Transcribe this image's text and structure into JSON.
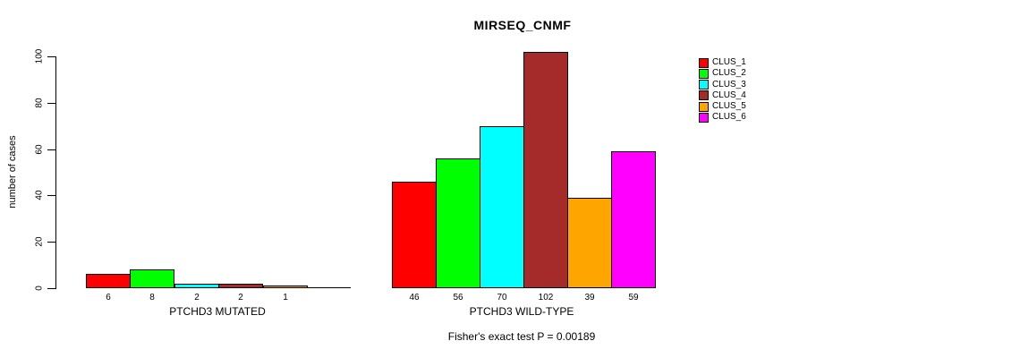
{
  "title": "MIRSEQ_CNMF",
  "y_axis": {
    "label": "number of cases",
    "ticks": [
      0,
      20,
      40,
      60,
      80,
      100
    ]
  },
  "legend": {
    "items": [
      {
        "label": "CLUS_1",
        "color": "#FF0000"
      },
      {
        "label": "CLUS_2",
        "color": "#00FF00"
      },
      {
        "label": "CLUS_3",
        "color": "#00FFFF"
      },
      {
        "label": "CLUS_4",
        "color": "#A52A2A"
      },
      {
        "label": "CLUS_5",
        "color": "#FFA500"
      },
      {
        "label": "CLUS_6",
        "color": "#FF00FF"
      }
    ]
  },
  "groups": [
    {
      "label": "PTCHD3 MUTATED",
      "values": [
        6,
        8,
        2,
        2,
        1,
        0
      ]
    },
    {
      "label": "PTCHD3 WILD-TYPE",
      "values": [
        46,
        56,
        70,
        102,
        39,
        59
      ]
    }
  ],
  "footnote": "Fisher's exact test P = 0.00189",
  "chart_data": {
    "type": "bar",
    "title": "MIRSEQ_CNMF",
    "ylabel": "number of cases",
    "ylim": [
      0,
      100
    ],
    "yticks": [
      0,
      20,
      40,
      60,
      80,
      100
    ],
    "grid": false,
    "legend_position": "right",
    "categories": [
      "CLUS_1",
      "CLUS_2",
      "CLUS_3",
      "CLUS_4",
      "CLUS_5",
      "CLUS_6"
    ],
    "series": [
      {
        "name": "PTCHD3 MUTATED",
        "values": [
          6,
          8,
          2,
          2,
          1,
          0
        ]
      },
      {
        "name": "PTCHD3 WILD-TYPE",
        "values": [
          46,
          56,
          70,
          102,
          39,
          59
        ]
      }
    ],
    "colors": [
      "#FF0000",
      "#00FF00",
      "#00FFFF",
      "#A52A2A",
      "#FFA500",
      "#FF00FF"
    ],
    "bar_value_labels": true,
    "annotation": "Fisher's exact test P = 0.00189"
  }
}
